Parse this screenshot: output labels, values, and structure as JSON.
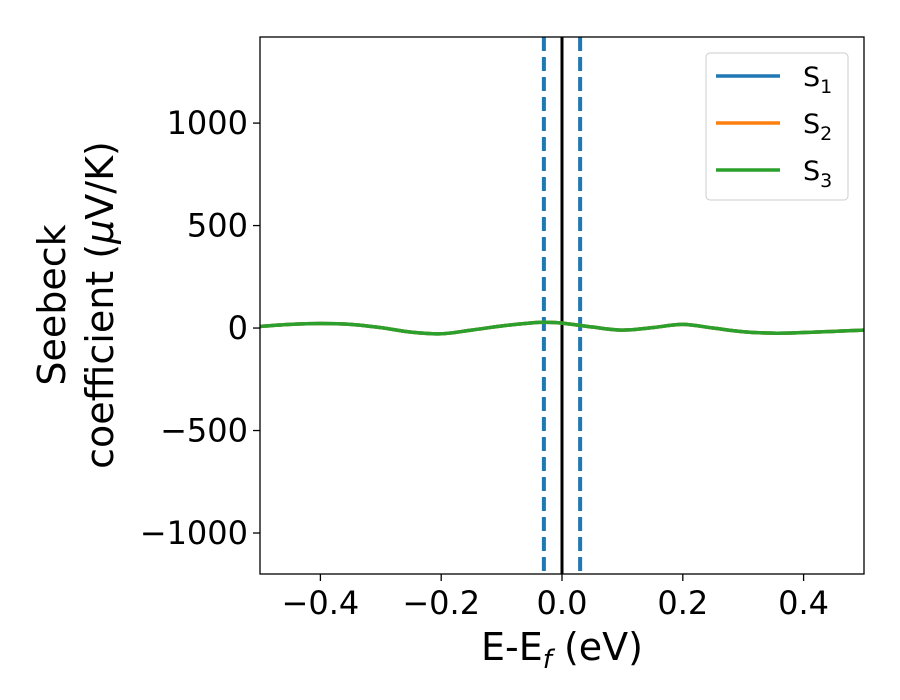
{
  "chart_data": {
    "type": "line",
    "xlabel": "E-E",
    "xlabel_sub": "f",
    "xlabel_unit": " (eV)",
    "ylabel_line1": "Seebeck",
    "ylabel_line2": "coefficient  (",
    "ylabel_mu": "μ",
    "ylabel_unit": "V/K)",
    "xlim": [
      -0.5,
      0.5
    ],
    "ylim": [
      -1200,
      1420
    ],
    "xticks": [
      -0.4,
      -0.2,
      0.0,
      0.2,
      0.4
    ],
    "xtick_labels": [
      "−0.4",
      "−0.2",
      "0.0",
      "0.2",
      "0.4"
    ],
    "yticks": [
      -1000,
      -500,
      0,
      500,
      1000
    ],
    "ytick_labels": [
      "−1000",
      "−500",
      "0",
      "500",
      "1000"
    ],
    "grid": false,
    "legend_position": "top-right",
    "vlines": [
      {
        "x": 0.0,
        "color": "#000000",
        "style": "solid"
      },
      {
        "x": -0.03,
        "color": "#1f77b4",
        "style": "dashed"
      },
      {
        "x": 0.03,
        "color": "#1f77b4",
        "style": "dashed"
      }
    ],
    "x": [
      -0.5,
      -0.45,
      -0.4,
      -0.35,
      -0.3,
      -0.25,
      -0.2,
      -0.15,
      -0.1,
      -0.05,
      -0.03,
      0.0,
      0.05,
      0.1,
      0.15,
      0.2,
      0.25,
      0.3,
      0.35,
      0.4,
      0.45,
      0.5
    ],
    "series": [
      {
        "name": "S",
        "sub": "1",
        "color": "#1f77b4",
        "values": [
          8,
          18,
          22,
          18,
          2,
          -20,
          -28,
          -10,
          10,
          25,
          28,
          24,
          5,
          -10,
          2,
          18,
          0,
          -18,
          -25,
          -22,
          -16,
          -10
        ]
      },
      {
        "name": "S",
        "sub": "2",
        "color": "#ff7f0e",
        "values": [
          8,
          18,
          22,
          18,
          2,
          -20,
          -28,
          -10,
          10,
          25,
          28,
          24,
          5,
          -10,
          2,
          18,
          0,
          -18,
          -25,
          -22,
          -16,
          -10
        ]
      },
      {
        "name": "S",
        "sub": "3",
        "color": "#2ca02c",
        "values": [
          8,
          18,
          22,
          18,
          2,
          -20,
          -28,
          -10,
          10,
          25,
          28,
          24,
          5,
          -10,
          2,
          18,
          0,
          -18,
          -25,
          -22,
          -16,
          -10
        ]
      }
    ]
  }
}
